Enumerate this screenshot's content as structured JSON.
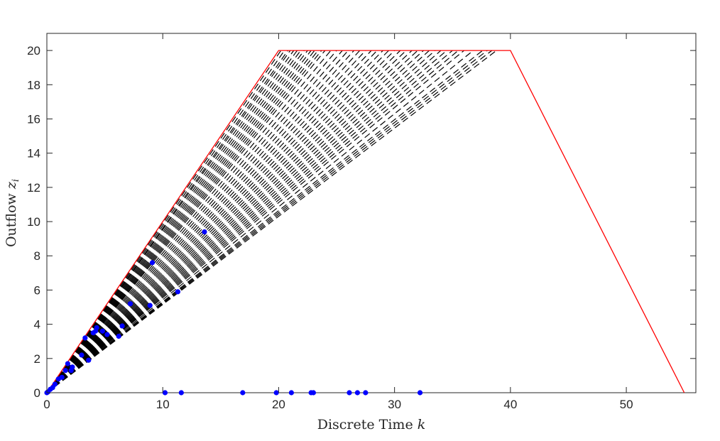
{
  "chart_data": {
    "type": "line",
    "xlabel": "Discrete Time k",
    "ylabel": "Outflow z_i",
    "xlim": [
      0,
      56
    ],
    "ylim": [
      0,
      21
    ],
    "xticks": [
      0,
      10,
      20,
      30,
      40,
      50
    ],
    "yticks": [
      0,
      2,
      4,
      6,
      8,
      10,
      12,
      14,
      16,
      18,
      20
    ],
    "grid": false,
    "series": [
      {
        "style": "solid",
        "color": "#ff0000",
        "x": [
          0,
          20,
          40,
          55
        ],
        "y": [
          0,
          20,
          20,
          0
        ]
      }
    ],
    "dashed_series": {
      "color": "#000000",
      "endpoints_x_at_y20": [
        20.2,
        20.5,
        20.8,
        21.0,
        21.3,
        21.6,
        21.9,
        22.2,
        22.5,
        22.8,
        23.1,
        23.4,
        23.7,
        24.0,
        24.5,
        25.0,
        25.5,
        26.0,
        26.5,
        27.0,
        27.5,
        28.0,
        28.5,
        29.0,
        29.5,
        30.0,
        30.5,
        31.0,
        31.5,
        32.0,
        32.5,
        33.0,
        33.5,
        34.0,
        34.5,
        35.0,
        35.5,
        36.0,
        36.8,
        37.6,
        38.0,
        38.4,
        38.8
      ]
    },
    "markers": {
      "color": "#0000ff",
      "points": [
        [
          0.0,
          0.0
        ],
        [
          0.1,
          0.05
        ],
        [
          0.3,
          0.2
        ],
        [
          0.5,
          0.3
        ],
        [
          0.7,
          0.5
        ],
        [
          1.0,
          0.8
        ],
        [
          1.3,
          0.9
        ],
        [
          1.6,
          1.3
        ],
        [
          1.8,
          1.7
        ],
        [
          2.1,
          1.3
        ],
        [
          2.2,
          1.5
        ],
        [
          3.0,
          2.2
        ],
        [
          3.3,
          3.2
        ],
        [
          3.6,
          1.9
        ],
        [
          4.0,
          3.5
        ],
        [
          4.2,
          3.6
        ],
        [
          4.3,
          3.8
        ],
        [
          4.8,
          3.6
        ],
        [
          5.2,
          3.4
        ],
        [
          6.2,
          3.3
        ],
        [
          6.5,
          3.9
        ],
        [
          7.2,
          5.2
        ],
        [
          8.9,
          5.1
        ],
        [
          9.1,
          7.6
        ],
        [
          11.3,
          5.9
        ],
        [
          13.6,
          9.4
        ],
        [
          10.2,
          0.0
        ],
        [
          11.6,
          0.0
        ],
        [
          16.9,
          0.0
        ],
        [
          19.8,
          0.0
        ],
        [
          21.1,
          0.0
        ],
        [
          22.8,
          0.0
        ],
        [
          23.0,
          0.0
        ],
        [
          26.1,
          0.0
        ],
        [
          26.8,
          0.0
        ],
        [
          27.5,
          0.0
        ],
        [
          32.2,
          0.0
        ]
      ]
    }
  },
  "labels": {
    "xlabel_text": "Discrete Time ",
    "xlabel_var": "k",
    "ylabel_text": "Outflow ",
    "ylabel_var": "z",
    "ylabel_sub": "i"
  }
}
